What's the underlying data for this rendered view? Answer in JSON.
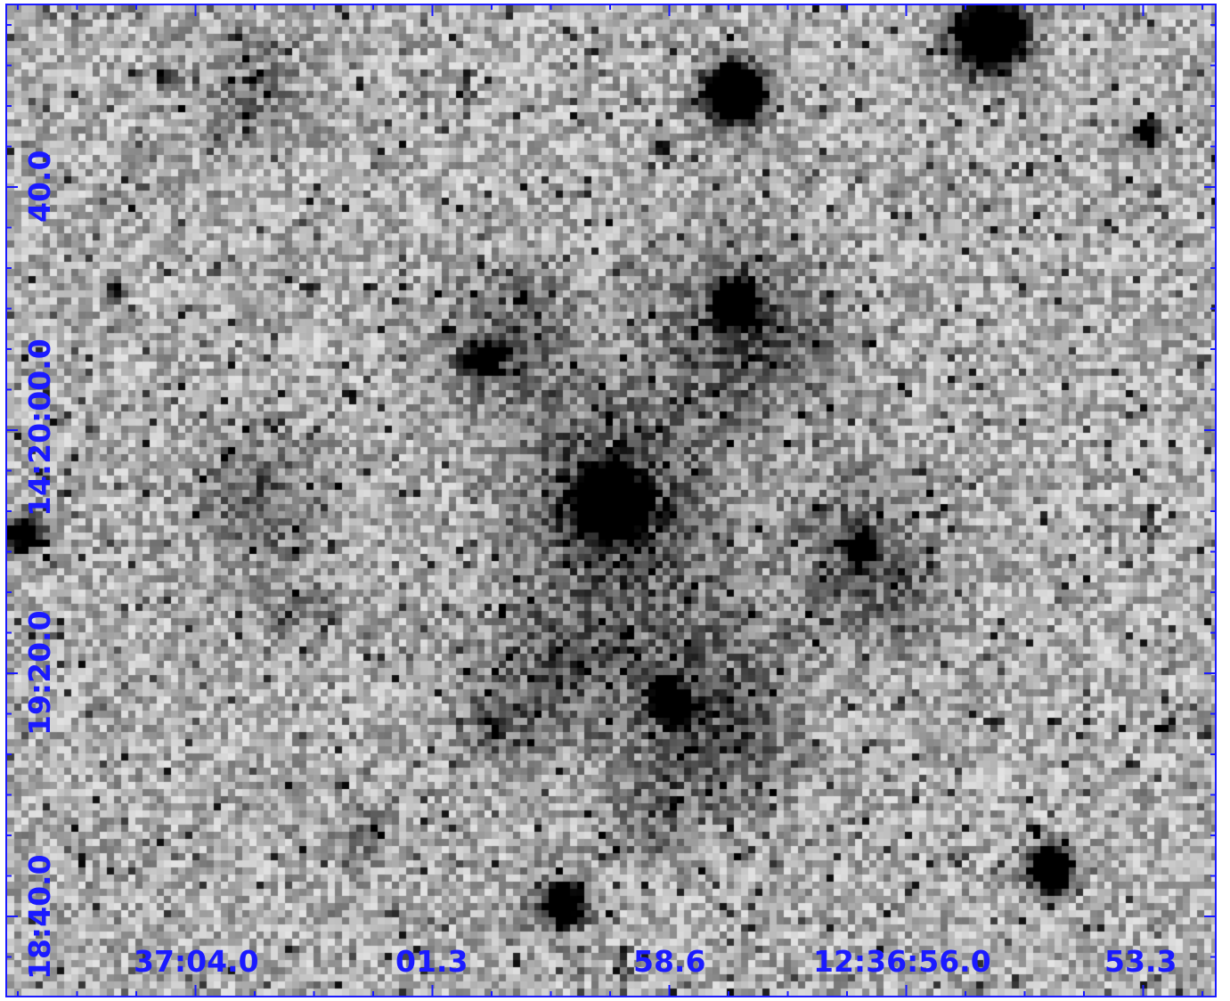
{
  "image": {
    "description_type": "astronomical-cutout",
    "colormap": "inverted-grayscale",
    "axis_color": "#1a1aff"
  },
  "ra_axis": {
    "labels": [
      "37:04.0",
      "01.3",
      "58.6",
      "12:36:56.0",
      "53.3"
    ]
  },
  "dec_axis": {
    "labels": [
      "40.0",
      "14:20:00.0",
      "19:20.0",
      "18:40.0"
    ]
  }
}
